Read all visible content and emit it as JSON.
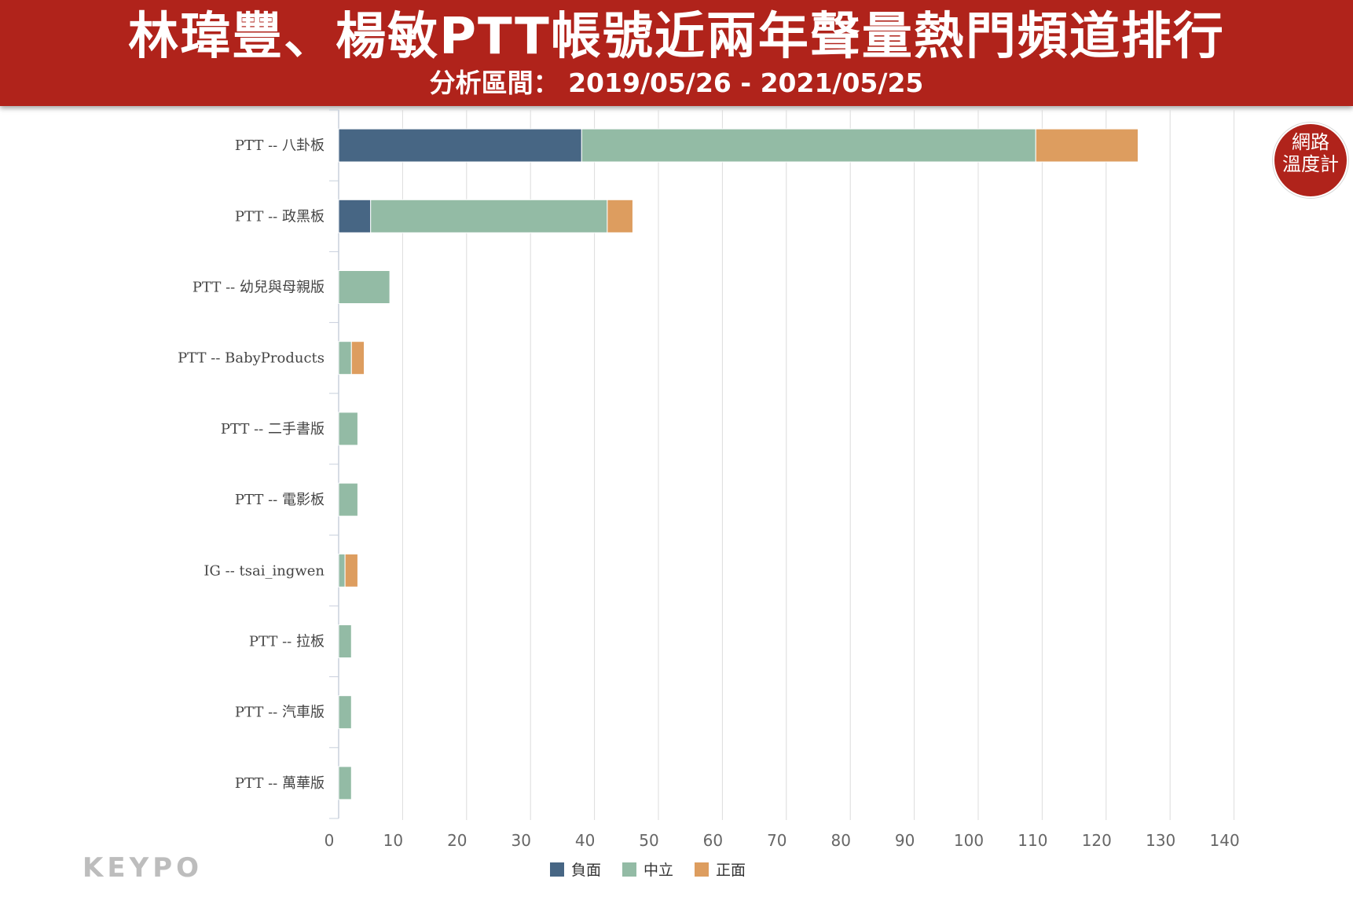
{
  "header": {
    "title": "林瑋豐、楊敏PTT帳號近兩年聲量熱門頻道排行",
    "subtitle": "分析區間： 2019/05/26 - 2021/05/25"
  },
  "badge": {
    "line1": "網路",
    "line2": "溫度計"
  },
  "brand": {
    "logo_text": "KEYPO"
  },
  "chart_data": {
    "type": "bar",
    "orientation": "horizontal",
    "stacked": true,
    "categories": [
      "PTT -- 八卦板",
      "PTT -- 政黑板",
      "PTT -- 幼兒與母親版",
      "PTT -- BabyProducts",
      "PTT -- 二手書版",
      "PTT -- 電影板",
      "IG -- tsai_ingwen",
      "PTT -- 拉板",
      "PTT -- 汽車版",
      "PTT -- 萬華版"
    ],
    "series": [
      {
        "name": "負面",
        "color": "#476684",
        "values": [
          38,
          5,
          0,
          0,
          0,
          0,
          0,
          0,
          0,
          0
        ]
      },
      {
        "name": "中立",
        "color": "#93bba5",
        "values": [
          71,
          37,
          8,
          2,
          3,
          3,
          1,
          2,
          2,
          2
        ]
      },
      {
        "name": "正面",
        "color": "#dd9d5f",
        "values": [
          16,
          4,
          0,
          2,
          0,
          0,
          2,
          0,
          0,
          0
        ]
      }
    ],
    "xlim": [
      0,
      140
    ],
    "xticks": [
      0,
      10,
      20,
      30,
      40,
      50,
      60,
      70,
      80,
      90,
      100,
      110,
      120,
      130,
      140
    ],
    "grid": true,
    "legend_position": "bottom-center"
  }
}
